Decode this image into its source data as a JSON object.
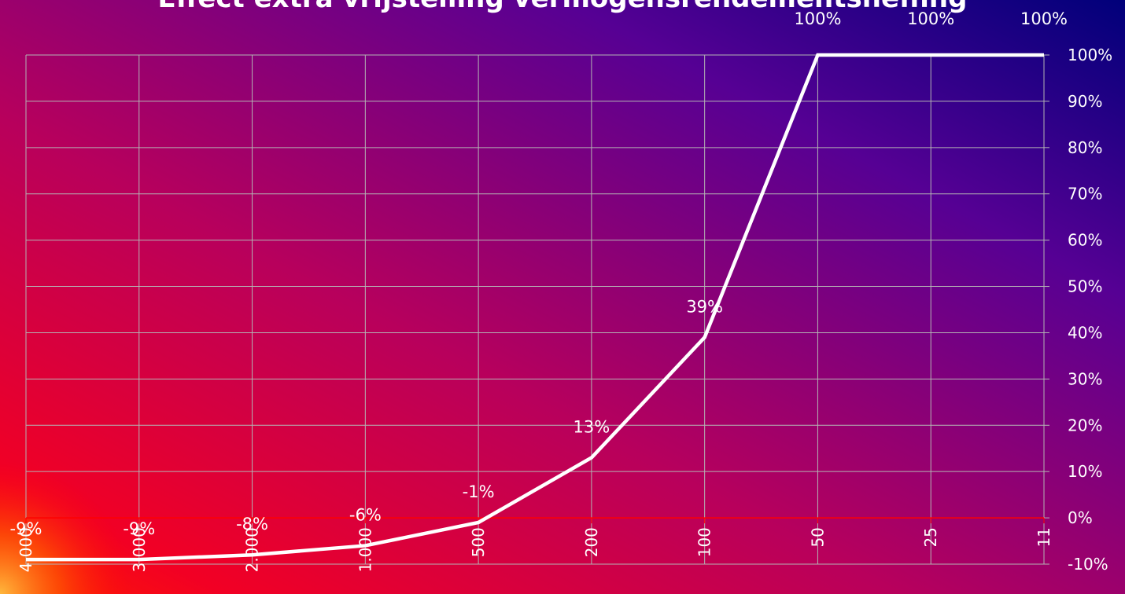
{
  "chart_data": {
    "type": "line",
    "title": "Effect extra vrijstelling vermogensrendementsheffing",
    "xlabel": "",
    "ylabel": "",
    "categories": [
      "4.000",
      "3.000",
      "2.000",
      "1.000",
      "500",
      "200",
      "100",
      "50",
      "25",
      "11"
    ],
    "series": [
      {
        "values": [
          -0.09,
          -0.09,
          -0.08,
          -0.06,
          -0.01,
          0.13,
          0.39,
          1.0,
          1.0,
          1.0
        ],
        "labels": [
          "-9%",
          "-9%",
          "-8%",
          "-6%",
          "-1%",
          "13%",
          "39%",
          "100%",
          "100%",
          "100%"
        ]
      }
    ],
    "ylim": [
      -0.1,
      1.0
    ],
    "yticks": [
      "100%",
      "90%",
      "80%",
      "70%",
      "60%",
      "50%",
      "40%",
      "30%",
      "20%",
      "10%",
      "0%",
      "-10%"
    ],
    "y_axis_position": "right",
    "grid": true,
    "legend": "none",
    "colors": {
      "line": "#ffffff",
      "grid": "#b4b4b4",
      "zero_line": "#ff0000",
      "background_from": "#ff0000",
      "background_to": "#000080"
    }
  }
}
